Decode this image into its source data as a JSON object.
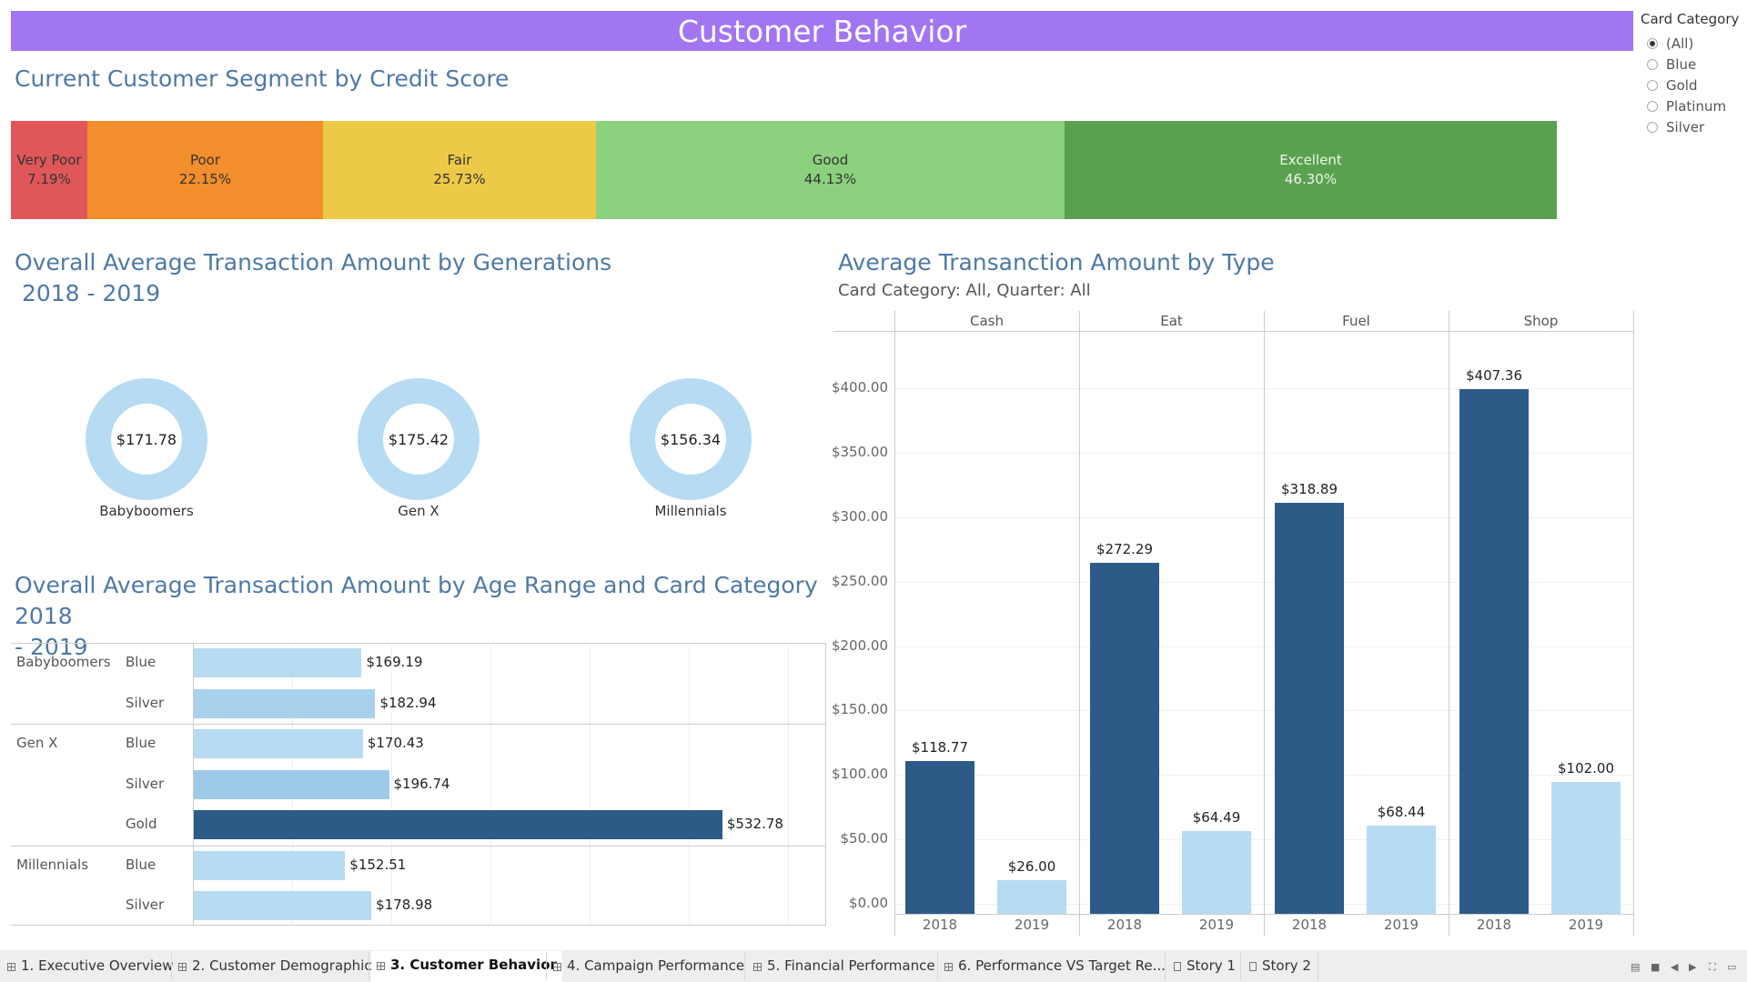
{
  "banner": {
    "title": "Customer Behavior"
  },
  "filter": {
    "title": "Card Category",
    "options": [
      "(All)",
      "Blue",
      "Gold",
      "Platinum",
      "Silver"
    ],
    "selected": "(All)"
  },
  "segment": {
    "title": "Current Customer Segment by Credit Score",
    "items": [
      {
        "label": "Very Poor",
        "value": "7.19%",
        "color": "#e05759"
      },
      {
        "label": "Poor",
        "value": "22.15%",
        "color": "#f28e2b"
      },
      {
        "label": "Fair",
        "value": "25.73%",
        "color": "#edc948"
      },
      {
        "label": "Good",
        "value": "44.13%",
        "color": "#8cd17d"
      },
      {
        "label": "Excellent",
        "value": "46.30%",
        "color": "#59a14f"
      }
    ]
  },
  "generations": {
    "title_line1": "Overall Average Transaction Amount by Generations",
    "title_line2": " 2018 - 2019",
    "donuts": [
      {
        "value": "$171.78",
        "label": "Babyboomers"
      },
      {
        "value": "$175.42",
        "label": "Gen X"
      },
      {
        "value": "$156.34",
        "label": "Millennials"
      }
    ]
  },
  "age_range": {
    "title_line1": "Overall Average Transaction Amount by Age Range and Card Category 2018",
    "title_line2": "- 2019"
  },
  "type_chart": {
    "title": "Average Transanction Amount by Type",
    "subtitle": "Card Category: All, Quarter: All"
  },
  "tabs": [
    {
      "label": "1. Executive Overview",
      "icon": "grid"
    },
    {
      "label": "2. Customer Demographic",
      "icon": "grid"
    },
    {
      "label": "3. Customer Behavior",
      "icon": "grid",
      "active": true
    },
    {
      "label": "4. Campaign Performance",
      "icon": "grid"
    },
    {
      "label": "5. Financial Performance",
      "icon": "grid"
    },
    {
      "label": "6. Performance VS Target Re...",
      "icon": "grid"
    },
    {
      "label": "Story 1",
      "icon": "story"
    },
    {
      "label": "Story 2",
      "icon": "story"
    }
  ],
  "chart_data": [
    {
      "type": "bar",
      "orientation": "horizontal",
      "title": "Overall Average Transaction Amount by Age Range and Card Category 2018 - 2019",
      "rows": [
        {
          "group": "Babyboomers",
          "category": "Blue",
          "value": 169.19,
          "label": "$169.19"
        },
        {
          "group": "Babyboomers",
          "category": "Silver",
          "value": 182.94,
          "label": "$182.94"
        },
        {
          "group": "Gen X",
          "category": "Blue",
          "value": 170.43,
          "label": "$170.43"
        },
        {
          "group": "Gen X",
          "category": "Silver",
          "value": 196.74,
          "label": "$196.74"
        },
        {
          "group": "Gen X",
          "category": "Gold",
          "value": 532.78,
          "label": "$532.78"
        },
        {
          "group": "Millennials",
          "category": "Blue",
          "value": 152.51,
          "label": "$152.51"
        },
        {
          "group": "Millennials",
          "category": "Silver",
          "value": 178.98,
          "label": "$178.98"
        }
      ],
      "xlim": [
        0,
        620
      ],
      "colors": {
        "low": "#b6dbf2",
        "high": "#2c5b87"
      }
    },
    {
      "type": "bar",
      "title": "Average Transanction Amount by Type",
      "panels": [
        "Cash",
        "Eat",
        "Fuel",
        "Shop"
      ],
      "categories": [
        "2018",
        "2019"
      ],
      "values": [
        [
          118.77,
          26.0
        ],
        [
          272.29,
          64.49
        ],
        [
          318.89,
          68.44
        ],
        [
          407.36,
          102.0
        ]
      ],
      "labels": [
        [
          "$118.77",
          "$26.00"
        ],
        [
          "$272.29",
          "$64.49"
        ],
        [
          "$318.89",
          "$68.44"
        ],
        [
          "$407.36",
          "$102.00"
        ]
      ],
      "yticks": [
        "$0.00",
        "$50.00",
        "$100.00",
        "$150.00",
        "$200.00",
        "$250.00",
        "$300.00",
        "$350.00",
        "$400.00"
      ],
      "ylim": [
        0,
        450
      ],
      "colors": {
        "2018": "#2c5b87",
        "2019": "#b6dbf2"
      }
    }
  ]
}
